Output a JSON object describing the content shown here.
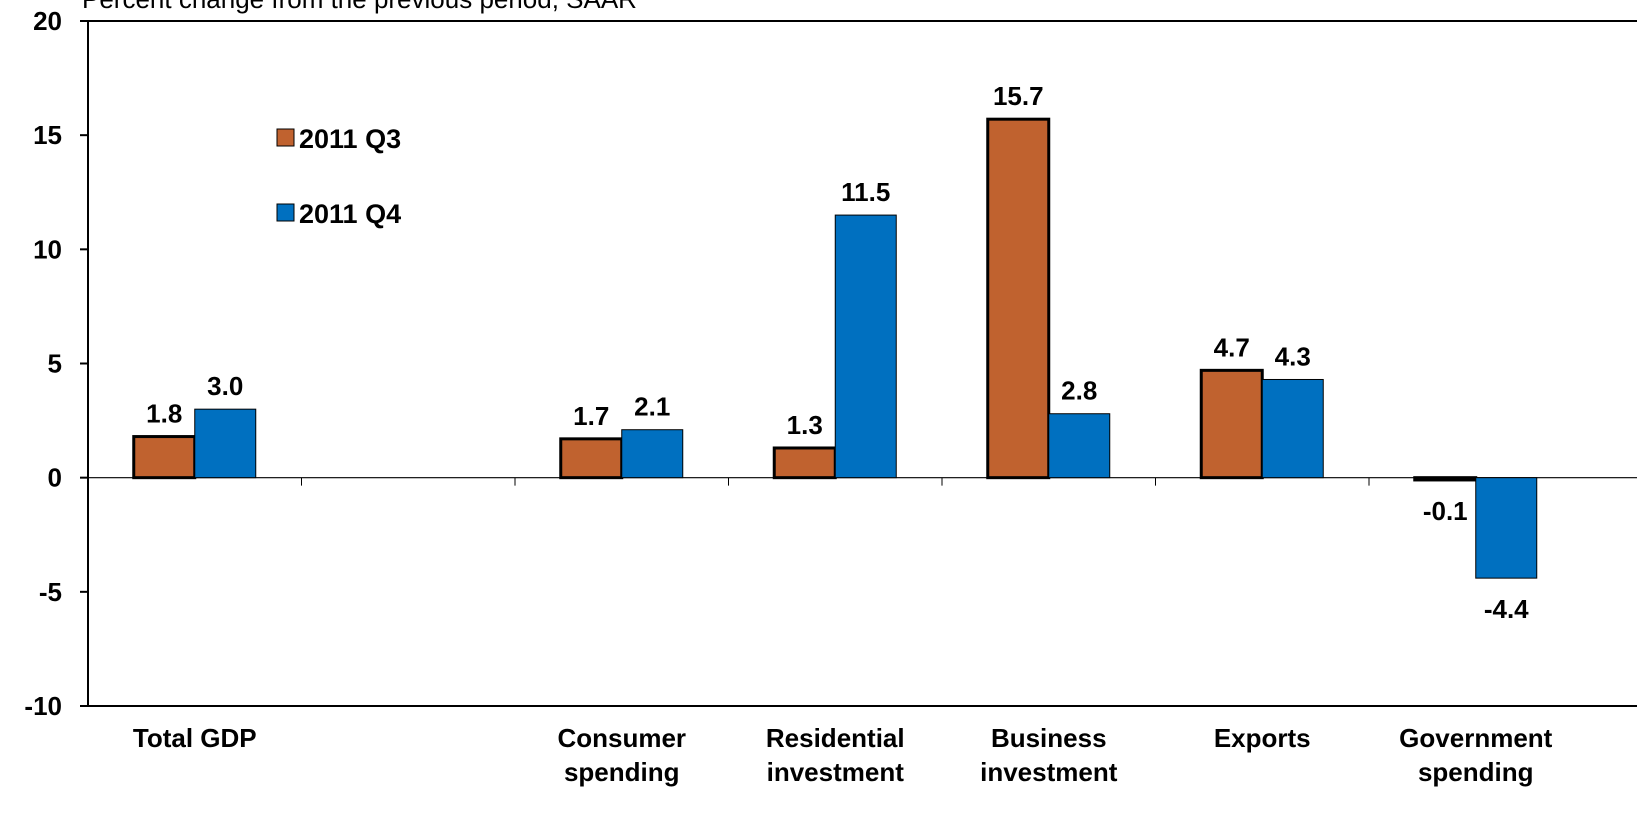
{
  "chart_data": {
    "type": "bar",
    "title": "Percent change from the previous period, SAAR",
    "xlabel": "",
    "ylabel": "",
    "ylim": [
      -10,
      20
    ],
    "yticks": [
      -10,
      -5,
      0,
      5,
      10,
      15,
      20
    ],
    "categories": [
      "Total GDP",
      "",
      "Consumer spending",
      "Residential investment",
      "Business investment",
      "Exports",
      "Government spending"
    ],
    "category_lines": [
      [
        "Total GDP"
      ],
      [],
      [
        "Consumer",
        "spending"
      ],
      [
        "Residential",
        "investment"
      ],
      [
        "Business",
        "investment"
      ],
      [
        "Exports"
      ],
      [
        "Government",
        "spending"
      ]
    ],
    "series": [
      {
        "name": "2011 Q3",
        "color": "#C0622F",
        "values": [
          1.8,
          null,
          1.7,
          1.3,
          15.7,
          4.7,
          -0.1
        ],
        "labels": [
          "1.8",
          "",
          "1.7",
          "1.3",
          "15.7",
          "4.7",
          "-0.1"
        ]
      },
      {
        "name": "2011 Q4",
        "color": "#0070C0",
        "values": [
          3.0,
          null,
          2.1,
          11.5,
          2.8,
          4.3,
          -4.4
        ],
        "labels": [
          "3.0",
          "",
          "2.1",
          "11.5",
          "2.8",
          "4.3",
          "-4.4"
        ]
      }
    ],
    "legend": {
      "placement": "top-left"
    },
    "grid": false
  }
}
